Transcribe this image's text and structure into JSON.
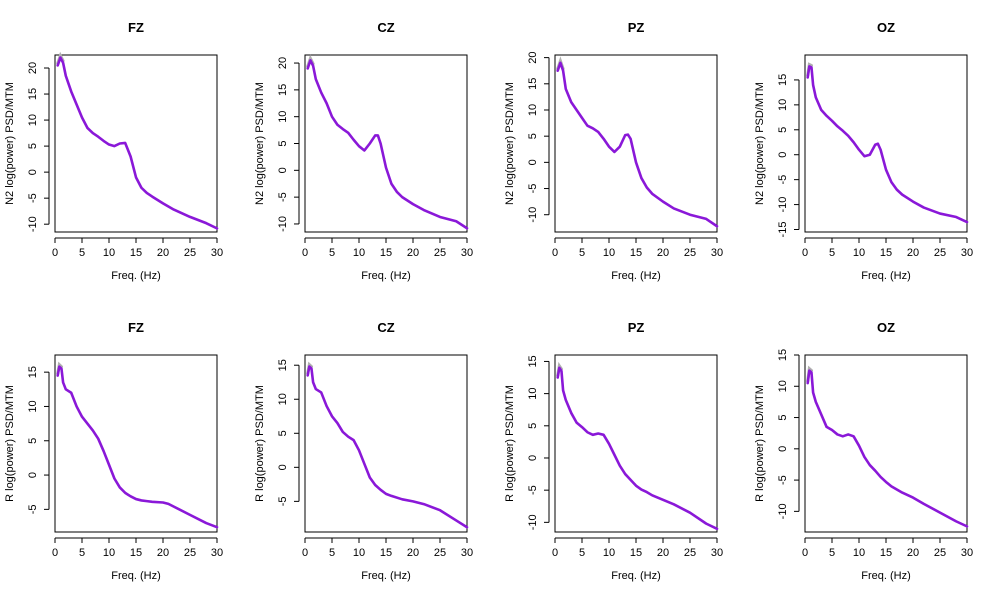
{
  "figure": {
    "rows": 2,
    "cols": 4
  },
  "colors": {
    "series": "#8a18d8",
    "grey": "#b0b0b0"
  },
  "chart_data": [
    {
      "type": "line",
      "title": "FZ",
      "xlabel": "Freq. (Hz)",
      "ylabel": "N2 log(power) PSD/MTM",
      "xlim": [
        0,
        30
      ],
      "ylim": [
        -11.5,
        22.5
      ],
      "xticks": [
        0,
        5,
        10,
        15,
        20,
        25,
        30
      ],
      "yticks": [
        -10,
        -5,
        0,
        5,
        10,
        15,
        20
      ],
      "series": [
        {
          "name": "PSD",
          "x": [
            0.5,
            1,
            1.5,
            2,
            3,
            4,
            5,
            6,
            7,
            8,
            9,
            10,
            11,
            12,
            13,
            14,
            15,
            16,
            17,
            18,
            20,
            22,
            25,
            28,
            30
          ],
          "y": [
            20.5,
            22,
            21,
            18.5,
            15.5,
            13,
            10.5,
            8.5,
            7.5,
            6.8,
            6,
            5.3,
            5,
            5.5,
            5.6,
            3,
            -1,
            -3,
            -4,
            -4.7,
            -6,
            -7.2,
            -8.6,
            -9.8,
            -10.8
          ]
        }
      ]
    },
    {
      "type": "line",
      "title": "CZ",
      "xlabel": "Freq. (Hz)",
      "ylabel": "N2 log(power) PSD/MTM",
      "xlim": [
        0,
        30
      ],
      "ylim": [
        -11.5,
        21.5
      ],
      "xticks": [
        0,
        5,
        10,
        15,
        20,
        25,
        30
      ],
      "yticks": [
        -10,
        -5,
        0,
        5,
        10,
        15,
        20
      ],
      "series": [
        {
          "name": "PSD",
          "x": [
            0.5,
            1,
            1.5,
            2,
            3,
            4,
            5,
            6,
            7,
            8,
            9,
            10,
            11,
            12,
            13,
            13.5,
            14,
            15,
            16,
            17,
            18,
            20,
            22,
            25,
            28,
            30
          ],
          "y": [
            19,
            20.5,
            19.5,
            17,
            14.5,
            12.5,
            10,
            8.5,
            7.7,
            7,
            5.7,
            4.5,
            3.7,
            5,
            6.5,
            6.5,
            5,
            0.5,
            -2.5,
            -4,
            -5,
            -6.3,
            -7.4,
            -8.7,
            -9.5,
            -10.8
          ]
        }
      ]
    },
    {
      "type": "line",
      "title": "PZ",
      "xlabel": "Freq. (Hz)",
      "ylabel": "N2 log(power) PSD/MTM",
      "xlim": [
        0,
        30
      ],
      "ylim": [
        -13.3,
        20.5
      ],
      "xticks": [
        0,
        5,
        10,
        15,
        20,
        25,
        30
      ],
      "yticks": [
        -10,
        -5,
        0,
        5,
        10,
        15,
        20
      ],
      "series": [
        {
          "name": "PSD",
          "x": [
            0.5,
            1,
            1.5,
            2,
            3,
            4,
            5,
            6,
            7,
            8,
            9,
            10,
            11,
            12,
            13,
            13.5,
            14,
            15,
            16,
            17,
            18,
            20,
            22,
            25,
            28,
            30
          ],
          "y": [
            17.5,
            19,
            17.5,
            14,
            11.5,
            10,
            8.5,
            7,
            6.5,
            5.8,
            4.5,
            3,
            2,
            3,
            5.2,
            5.3,
            4.5,
            0,
            -3,
            -4.8,
            -6,
            -7.5,
            -8.8,
            -10,
            -10.8,
            -12.2
          ]
        }
      ]
    },
    {
      "type": "line",
      "title": "OZ",
      "xlabel": "Freq. (Hz)",
      "ylabel": "N2 log(power) PSD/MTM",
      "xlim": [
        0,
        30
      ],
      "ylim": [
        -15.5,
        20
      ],
      "xticks": [
        0,
        5,
        10,
        15,
        20,
        25,
        30
      ],
      "yticks": [
        -15,
        -10,
        -5,
        0,
        5,
        10,
        15
      ],
      "series": [
        {
          "name": "PSD",
          "x": [
            0.5,
            0.8,
            1.2,
            1.5,
            2,
            3,
            4,
            5,
            6,
            7,
            8,
            9,
            10,
            11,
            12,
            13,
            13.5,
            14,
            15,
            16,
            17,
            18,
            20,
            22,
            25,
            28,
            30
          ],
          "y": [
            15.5,
            17.7,
            17.5,
            14,
            11.5,
            9,
            7.8,
            6.8,
            5.7,
            4.8,
            3.8,
            2.5,
            1,
            -0.3,
            0,
            2,
            2.2,
            1,
            -3,
            -5.5,
            -7,
            -8,
            -9.4,
            -10.6,
            -11.8,
            -12.5,
            -13.5
          ]
        }
      ]
    },
    {
      "type": "line",
      "title": "FZ",
      "xlabel": "Freq. (Hz)",
      "ylabel": "R log(power) PSD/MTM",
      "xlim": [
        0,
        30
      ],
      "ylim": [
        -8.3,
        17.5
      ],
      "xticks": [
        0,
        5,
        10,
        15,
        20,
        25,
        30
      ],
      "yticks": [
        -5,
        0,
        5,
        10,
        15
      ],
      "series": [
        {
          "name": "PSD",
          "x": [
            0.5,
            0.8,
            1.2,
            1.5,
            2,
            3,
            4,
            5,
            6,
            7,
            8,
            9,
            10,
            11,
            12,
            13,
            14,
            15,
            16,
            17,
            18,
            20,
            21,
            22,
            25,
            28,
            30
          ],
          "y": [
            14.5,
            15.8,
            15.5,
            13.5,
            12.5,
            12,
            10,
            8.5,
            7.5,
            6.5,
            5.3,
            3.5,
            1.5,
            -0.5,
            -1.8,
            -2.6,
            -3.1,
            -3.5,
            -3.7,
            -3.8,
            -3.9,
            -4,
            -4.2,
            -4.6,
            -5.8,
            -7,
            -7.6
          ]
        }
      ]
    },
    {
      "type": "line",
      "title": "CZ",
      "xlabel": "Freq. (Hz)",
      "ylabel": "R log(power) PSD/MTM",
      "xlim": [
        0,
        30
      ],
      "ylim": [
        -9.5,
        16.5
      ],
      "xticks": [
        0,
        5,
        10,
        15,
        20,
        25,
        30
      ],
      "yticks": [
        -5,
        0,
        5,
        10,
        15
      ],
      "series": [
        {
          "name": "PSD",
          "x": [
            0.5,
            0.8,
            1.2,
            1.5,
            2,
            3,
            4,
            5,
            6,
            7,
            8,
            9,
            10,
            11,
            12,
            13,
            14,
            15,
            16,
            18,
            20,
            22,
            25,
            28,
            30
          ],
          "y": [
            13.5,
            14.8,
            14.5,
            12.5,
            11.5,
            11,
            9,
            7.5,
            6.5,
            5.2,
            4.5,
            4,
            2.5,
            0.5,
            -1.5,
            -2.6,
            -3.3,
            -3.9,
            -4.2,
            -4.7,
            -5,
            -5.4,
            -6.3,
            -7.8,
            -8.8
          ]
        }
      ]
    },
    {
      "type": "line",
      "title": "PZ",
      "xlabel": "Freq. (Hz)",
      "ylabel": "R log(power) PSD/MTM",
      "xlim": [
        0,
        30
      ],
      "ylim": [
        -11.5,
        16
      ],
      "xticks": [
        0,
        5,
        10,
        15,
        20,
        25,
        30
      ],
      "yticks": [
        -10,
        -5,
        0,
        5,
        10,
        15
      ],
      "series": [
        {
          "name": "PSD",
          "x": [
            0.5,
            0.8,
            1.2,
            1.5,
            2,
            3,
            4,
            5,
            6,
            7,
            8,
            9,
            10,
            11,
            12,
            13,
            14,
            15,
            16,
            17,
            18,
            20,
            22,
            25,
            28,
            30
          ],
          "y": [
            12.5,
            14,
            13.5,
            10.5,
            9,
            7,
            5.5,
            4.8,
            4,
            3.6,
            3.8,
            3.6,
            2.2,
            0.5,
            -1.2,
            -2.5,
            -3.4,
            -4.3,
            -4.9,
            -5.3,
            -5.8,
            -6.5,
            -7.2,
            -8.5,
            -10.2,
            -11
          ]
        }
      ]
    },
    {
      "type": "line",
      "title": "OZ",
      "xlabel": "Freq. (Hz)",
      "ylabel": "R log(power) PSD/MTM",
      "xlim": [
        0,
        30
      ],
      "ylim": [
        -13.3,
        15
      ],
      "xticks": [
        0,
        5,
        10,
        15,
        20,
        25,
        30
      ],
      "yticks": [
        -10,
        -5,
        0,
        5,
        10,
        15
      ],
      "series": [
        {
          "name": "PSD",
          "x": [
            0.5,
            0.8,
            1.2,
            1.5,
            2,
            3,
            4,
            5,
            6,
            7,
            8,
            9,
            10,
            11,
            12,
            13,
            14,
            15,
            16,
            17,
            18,
            20,
            22,
            25,
            28,
            30
          ],
          "y": [
            10.5,
            12.5,
            12.2,
            9,
            7.5,
            5.5,
            3.5,
            3,
            2.3,
            2,
            2.3,
            2,
            0.5,
            -1.3,
            -2.6,
            -3.5,
            -4.5,
            -5.3,
            -6,
            -6.5,
            -7,
            -7.8,
            -8.8,
            -10.2,
            -11.6,
            -12.4
          ]
        }
      ]
    }
  ]
}
